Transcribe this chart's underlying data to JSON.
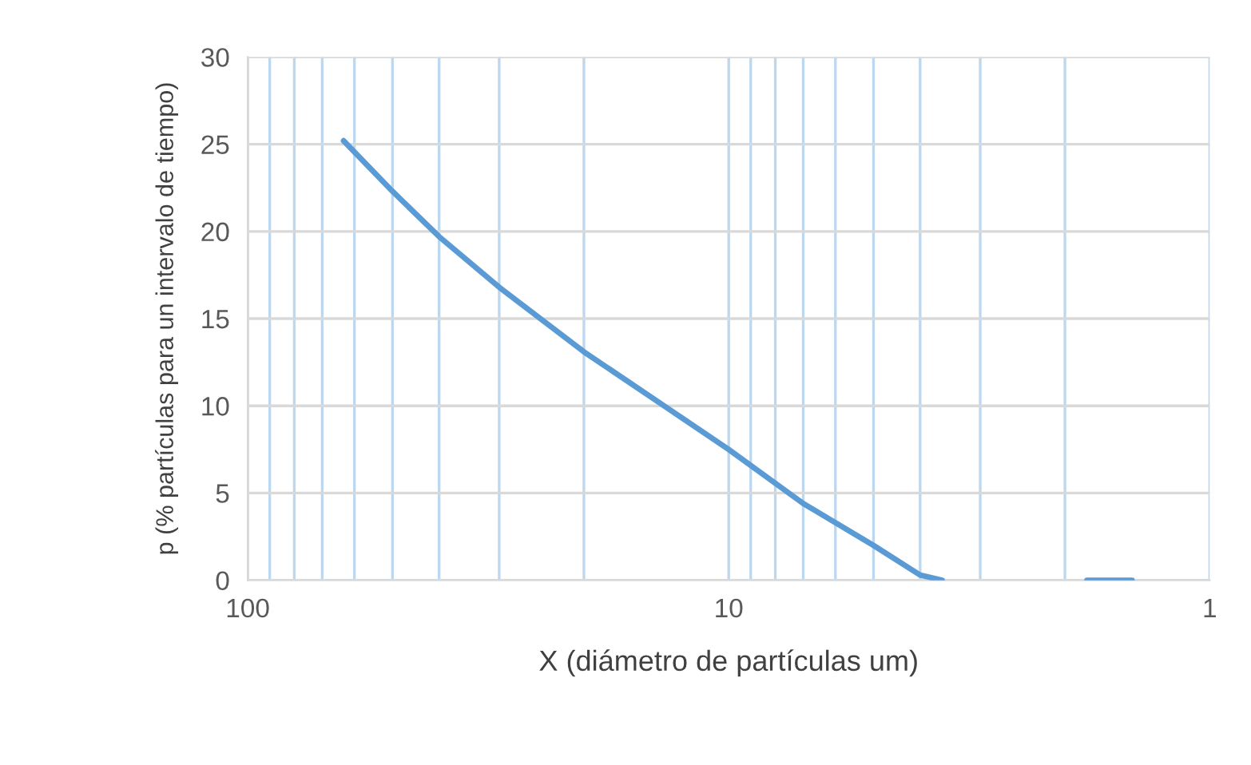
{
  "chart_data": {
    "type": "line",
    "xlabel": "X (diámetro de partículas um)",
    "ylabel": "p (% partículas para un intervalo de tiempo)",
    "log": "x",
    "xlim": [
      100,
      1
    ],
    "xticks": [
      100,
      {
        "value": 90,
        "label": null
      },
      {
        "value": 80,
        "label": null
      },
      {
        "value": 70,
        "label": null
      },
      {
        "value": 60,
        "label": null
      },
      {
        "value": 50,
        "label": null
      },
      {
        "value": 40,
        "label": null
      },
      {
        "value": 30,
        "label": null
      },
      {
        "value": 20,
        "label": null
      },
      10,
      {
        "value": 9,
        "label": null
      },
      {
        "value": 8,
        "label": null
      },
      {
        "value": 7,
        "label": null
      },
      {
        "value": 6,
        "label": null
      },
      {
        "value": 5,
        "label": null
      },
      {
        "value": 4,
        "label": null
      },
      {
        "value": 3,
        "label": null
      },
      {
        "value": 2,
        "label": null
      },
      1
    ],
    "ylim": [
      0,
      30
    ],
    "yticks": [
      0,
      5,
      10,
      15,
      20,
      25,
      30
    ],
    "grid": true,
    "marker": "none",
    "line_style": "solid",
    "series": [
      {
        "color": "#5b9bd5",
        "x": [
          63.2,
          50,
          40,
          30,
          20,
          10,
          7.0,
          5,
          4,
          3.6,
          2.5,
          1.8,
          1.45
        ],
        "values": [
          25.2,
          22.3,
          19.7,
          16.8,
          13.1,
          7.5,
          4.4,
          2.0,
          0.3,
          0,
          null,
          0,
          0
        ]
      }
    ]
  }
}
